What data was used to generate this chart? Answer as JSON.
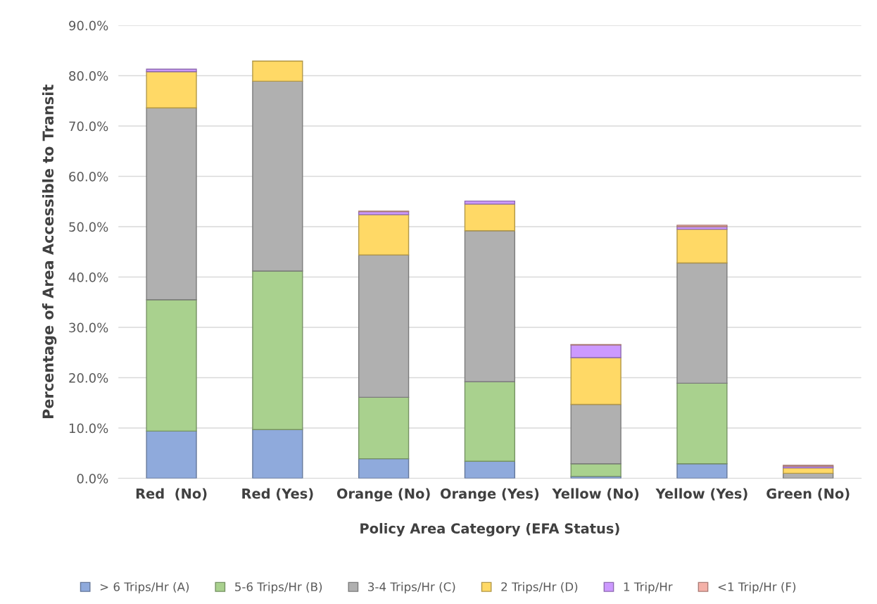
{
  "chart_data": {
    "type": "bar",
    "stacked": true,
    "xlabel": "Policy Area Category (EFA Status)",
    "ylabel": "Percentage of Area Accessible to Transit",
    "categories": [
      "Red  (No)",
      "Red (Yes)",
      "Orange (No)",
      "Orange (Yes)",
      "Yellow (No)",
      "Yellow (Yes)",
      "Green (No)"
    ],
    "series": [
      {
        "name": "> 6 Trips/Hr (A)",
        "color": "#8faadc",
        "values": [
          9.4,
          9.7,
          3.9,
          3.4,
          0.4,
          2.9,
          0
        ]
      },
      {
        "name": "5-6 Trips/Hr (B)",
        "color": "#a9d18e",
        "values": [
          26.1,
          31.5,
          12.2,
          15.8,
          2.5,
          16.0,
          0
        ]
      },
      {
        "name": "3-4 Trips/Hr (C)",
        "color": "#b0b0b0",
        "values": [
          38.1,
          37.7,
          28.3,
          30.0,
          11.8,
          23.9,
          1.0
        ]
      },
      {
        "name": "2 Trips/Hr (D)",
        "color": "#ffd966",
        "values": [
          7.2,
          4.0,
          8.0,
          5.3,
          9.3,
          6.7,
          1.1
        ]
      },
      {
        "name": "1 Trip/Hr",
        "color": "#cc99ff",
        "values": [
          0.5,
          0,
          0.6,
          0.6,
          2.5,
          0.5,
          0.3
        ]
      },
      {
        "name": "<1 Trip/Hr (F)",
        "color": "#f4b1a8",
        "values": [
          0,
          0,
          0.1,
          0,
          0.1,
          0.3,
          0.2
        ]
      }
    ],
    "ylim": [
      0,
      90
    ],
    "yticks": [
      {
        "value": 0,
        "label": "0.0%"
      },
      {
        "value": 10,
        "label": "10.0%"
      },
      {
        "value": 20,
        "label": "20.0%"
      },
      {
        "value": 30,
        "label": "30.0%"
      },
      {
        "value": 40,
        "label": "40.0%"
      },
      {
        "value": 50,
        "label": "50.0%"
      },
      {
        "value": 60,
        "label": "60.0%"
      },
      {
        "value": 70,
        "label": "70.0%"
      },
      {
        "value": 80,
        "label": "80.0%"
      },
      {
        "value": 90,
        "label": "90.0%"
      }
    ],
    "grid": "y",
    "legend": "bottom"
  }
}
